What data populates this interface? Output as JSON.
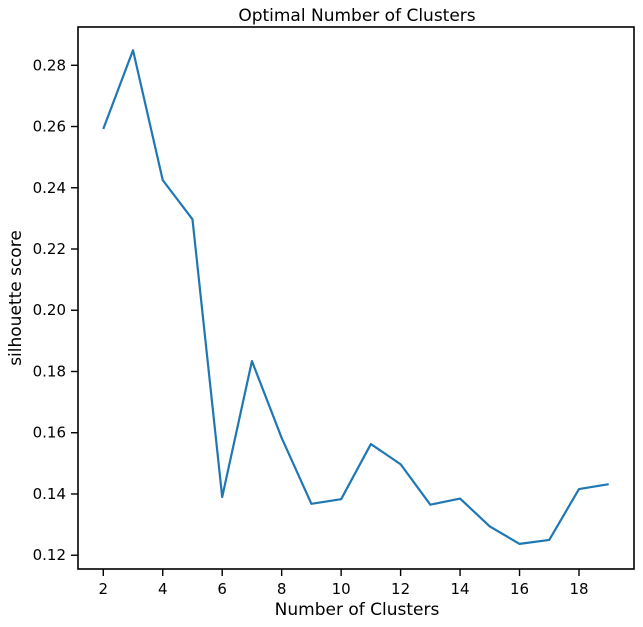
{
  "chart_data": {
    "type": "line",
    "title": "Optimal Number of Clusters",
    "xlabel": "Number of Clusters",
    "ylabel": "silhouette score",
    "xlim": [
      1.15,
      19.85
    ],
    "ylim": [
      0.1155,
      0.2925
    ],
    "xticks": [
      2,
      4,
      6,
      8,
      10,
      12,
      14,
      16,
      18
    ],
    "yticks": [
      0.12,
      0.14,
      0.16,
      0.18,
      0.2,
      0.22,
      0.24,
      0.26,
      0.28
    ],
    "ytick_labels": [
      "0.12",
      "0.14",
      "0.16",
      "0.18",
      "0.20",
      "0.22",
      "0.24",
      "0.26",
      "0.28"
    ],
    "grid": false,
    "line_color": "#1f77b4",
    "x": [
      2,
      3,
      4,
      5,
      6,
      7,
      8,
      9,
      10,
      11,
      12,
      13,
      14,
      15,
      16,
      17,
      18,
      19
    ],
    "y": [
      0.2592,
      0.2849,
      0.2425,
      0.2297,
      0.139,
      0.1834,
      0.1583,
      0.1368,
      0.1383,
      0.1563,
      0.1497,
      0.1365,
      0.1385,
      0.1294,
      0.1237,
      0.125,
      0.1416,
      0.1432
    ]
  }
}
